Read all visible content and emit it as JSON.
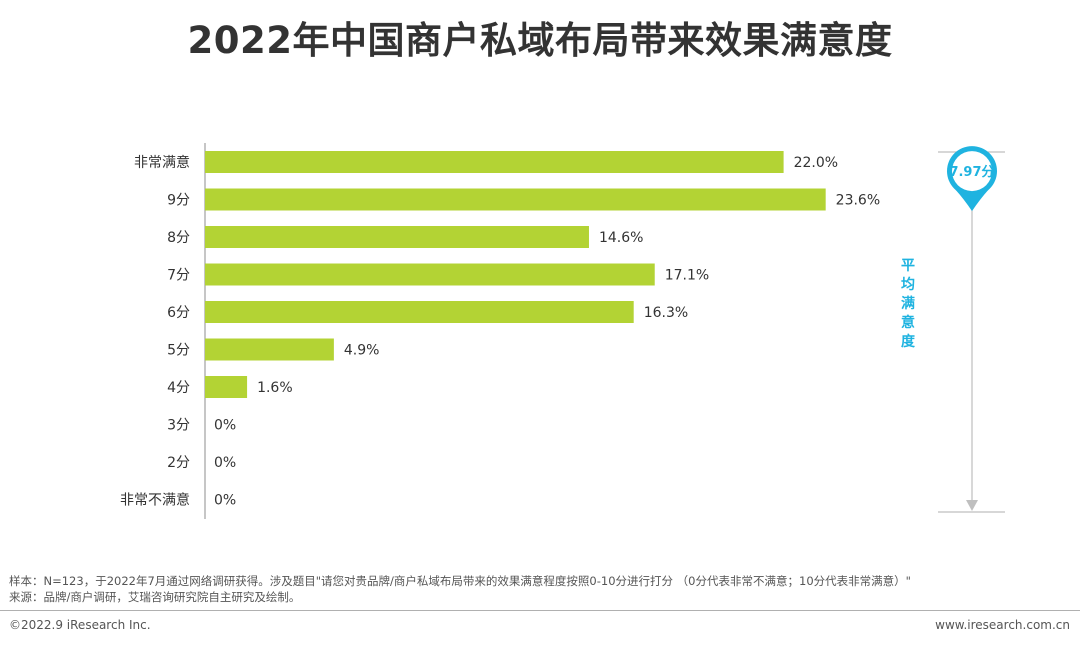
{
  "title": "2022年中国商户私域布局带来效果满意度",
  "chart_data": {
    "type": "bar",
    "orientation": "horizontal",
    "categories": [
      "非常满意",
      "9分",
      "8分",
      "7分",
      "6分",
      "5分",
      "4分",
      "3分",
      "2分",
      "非常不满意"
    ],
    "values": [
      22.0,
      23.6,
      14.6,
      17.1,
      16.3,
      4.9,
      1.6,
      0,
      0,
      0
    ],
    "value_labels": [
      "22.0%",
      "23.6%",
      "14.6%",
      "17.1%",
      "16.3%",
      "4.9%",
      "1.6%",
      "0%",
      "0%",
      "0%"
    ],
    "unit": "%",
    "bar_color": "#b3d334",
    "grid": false,
    "legend": "none",
    "average": {
      "label": "平均满意度",
      "value_text": "7.97分",
      "value": 7.97,
      "scale_min": 0,
      "scale_max": 10,
      "color": "#1fb3e0"
    }
  },
  "footnote": {
    "sample": "样本：N=123，于2022年7月通过网络调研获得。涉及题目\"请您对贵品牌/商户私域布局带来的效果满意程度按照0-10分进行打分 （0分代表非常不满意；10分代表非常满意）\"",
    "source": "来源：品牌/商户调研，艾瑞咨询研究院自主研究及绘制。"
  },
  "footer": {
    "copyright": "©2022.9 iResearch Inc.",
    "website": "www.iresearch.com.cn"
  }
}
